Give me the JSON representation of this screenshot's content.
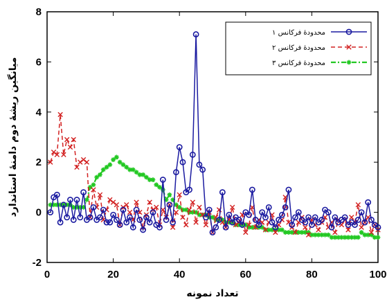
{
  "chart_data": {
    "type": "line",
    "title": "",
    "xlabel": "تعداد نمونه",
    "ylabel": "میانگین ریشهٔ دوم دامنهٔ استاندارد",
    "xlim": [
      0,
      100
    ],
    "ylim": [
      -2,
      8
    ],
    "xticks": [
      0,
      20,
      40,
      60,
      80,
      100
    ],
    "yticks": [
      -2,
      0,
      2,
      4,
      6,
      8
    ],
    "grid": false,
    "legend_position": "top-right",
    "series": [
      {
        "name": "محدودهٔ فرکانس ۱",
        "color": "#1a1aa0",
        "style": "solid",
        "marker": "circle",
        "x": [
          1,
          2,
          3,
          4,
          5,
          6,
          7,
          8,
          9,
          10,
          11,
          12,
          13,
          14,
          15,
          16,
          17,
          18,
          19,
          20,
          21,
          22,
          23,
          24,
          25,
          26,
          27,
          28,
          29,
          30,
          31,
          32,
          33,
          34,
          35,
          36,
          37,
          38,
          39,
          40,
          41,
          42,
          43,
          44,
          45,
          46,
          47,
          48,
          49,
          50,
          51,
          52,
          53,
          54,
          55,
          56,
          57,
          58,
          59,
          60,
          61,
          62,
          63,
          64,
          65,
          66,
          67,
          68,
          69,
          70,
          71,
          72,
          73,
          74,
          75,
          76,
          77,
          78,
          79,
          80,
          81,
          82,
          83,
          84,
          85,
          86,
          87,
          88,
          89,
          90,
          91,
          92,
          93,
          94,
          95,
          96,
          97,
          98,
          99,
          100
        ],
        "values": [
          0.0,
          0.6,
          0.7,
          -0.4,
          0.3,
          -0.2,
          0.5,
          -0.3,
          0.5,
          -0.2,
          0.8,
          -0.3,
          -0.2,
          0.2,
          -0.3,
          -0.2,
          0.1,
          -0.4,
          -0.4,
          -0.1,
          -0.3,
          -0.5,
          0.1,
          -0.4,
          -0.2,
          -0.6,
          0.1,
          -0.3,
          -0.7,
          -0.2,
          -0.4,
          0.0,
          -0.5,
          -0.6,
          1.3,
          -0.3,
          0.3,
          -0.4,
          1.6,
          2.6,
          2.0,
          0.8,
          0.9,
          2.3,
          7.1,
          1.9,
          1.7,
          -0.2,
          0.1,
          -0.8,
          -0.6,
          -0.3,
          0.8,
          -0.6,
          -0.1,
          -0.4,
          -0.2,
          -0.3,
          -0.5,
          0.0,
          -0.1,
          0.9,
          -0.3,
          -0.5,
          0.0,
          -0.2,
          0.2,
          -0.4,
          -0.6,
          -0.3,
          -0.1,
          0.2,
          0.9,
          -0.5,
          -0.2,
          0.0,
          -0.3,
          -0.4,
          -0.2,
          -0.5,
          -0.2,
          -0.4,
          -0.3,
          0.1,
          0.0,
          -0.6,
          -0.2,
          -0.4,
          -0.3,
          -0.2,
          -0.5,
          -0.4,
          -0.5,
          -0.3,
          0.0,
          -0.4,
          0.4,
          -0.3,
          -0.5,
          -0.6
        ]
      },
      {
        "name": "محدودهٔ فرکانس ۲",
        "color": "#d22020",
        "style": "dashed",
        "marker": "x",
        "x": [
          1,
          2,
          3,
          4,
          5,
          6,
          7,
          8,
          9,
          10,
          11,
          12,
          13,
          14,
          15,
          16,
          17,
          18,
          19,
          20,
          21,
          22,
          23,
          24,
          25,
          26,
          27,
          28,
          29,
          30,
          31,
          32,
          33,
          34,
          35,
          36,
          37,
          38,
          39,
          40,
          41,
          42,
          43,
          44,
          45,
          46,
          47,
          48,
          49,
          50,
          51,
          52,
          53,
          54,
          55,
          56,
          57,
          58,
          59,
          60,
          61,
          62,
          63,
          64,
          65,
          66,
          67,
          68,
          69,
          70,
          71,
          72,
          73,
          74,
          75,
          76,
          77,
          78,
          79,
          80,
          81,
          82,
          83,
          84,
          85,
          86,
          87,
          88,
          89,
          90,
          91,
          92,
          93,
          94,
          95,
          96,
          97,
          98,
          99,
          100
        ],
        "values": [
          2.0,
          2.4,
          2.3,
          3.9,
          2.3,
          2.9,
          2.6,
          2.9,
          1.8,
          2.0,
          2.1,
          2.0,
          -0.2,
          0.9,
          0.2,
          0.7,
          -0.3,
          0.1,
          0.5,
          0.4,
          0.3,
          -0.5,
          0.2,
          0.3,
          0.0,
          -0.3,
          0.4,
          0.0,
          -0.6,
          -0.1,
          0.4,
          0.1,
          0.2,
          -0.5,
          0.1,
          -0.2,
          0.3,
          -0.6,
          0.0,
          0.7,
          -0.2,
          -0.5,
          0.1,
          0.4,
          -0.4,
          0.2,
          -0.1,
          -0.5,
          0.0,
          -0.8,
          -0.2,
          0.1,
          -0.4,
          -0.6,
          -0.3,
          0.2,
          -0.5,
          -0.4,
          -0.1,
          -0.8,
          -0.5,
          0.2,
          -0.6,
          -0.3,
          -0.4,
          -0.7,
          -0.4,
          -0.1,
          -0.8,
          -0.5,
          -0.3,
          0.6,
          -0.4,
          -0.6,
          -0.8,
          -0.4,
          -0.2,
          -0.6,
          -0.9,
          -0.3,
          -0.5,
          -0.7,
          -0.4,
          -0.2,
          -0.6,
          -0.4,
          -0.8,
          -0.3,
          -0.5,
          -0.3,
          -0.7,
          -0.2,
          -0.4,
          0.3,
          -0.6,
          -0.4,
          -0.2,
          -0.8,
          -0.5,
          -0.7
        ]
      },
      {
        "name": "محدودهٔ فرکانس ۳",
        "color": "#22c822",
        "style": "dash-dot",
        "marker": "star",
        "x": [
          1,
          2,
          3,
          4,
          5,
          6,
          7,
          8,
          9,
          10,
          11,
          12,
          13,
          14,
          15,
          16,
          17,
          18,
          19,
          20,
          21,
          22,
          23,
          24,
          25,
          26,
          27,
          28,
          29,
          30,
          31,
          32,
          33,
          34,
          35,
          36,
          37,
          38,
          39,
          40,
          41,
          42,
          43,
          44,
          45,
          46,
          47,
          48,
          49,
          50,
          51,
          52,
          53,
          54,
          55,
          56,
          57,
          58,
          59,
          60,
          61,
          62,
          63,
          64,
          65,
          66,
          67,
          68,
          69,
          70,
          71,
          72,
          73,
          74,
          75,
          76,
          77,
          78,
          79,
          80,
          81,
          82,
          83,
          84,
          85,
          86,
          87,
          88,
          89,
          90,
          91,
          92,
          93,
          94,
          95,
          96,
          97,
          98,
          99,
          100
        ],
        "values": [
          0.3,
          0.3,
          0.3,
          0.3,
          0.3,
          0.3,
          0.3,
          0.2,
          0.2,
          0.2,
          0.2,
          0.5,
          1.0,
          1.1,
          1.4,
          1.5,
          1.7,
          1.8,
          1.9,
          2.1,
          2.2,
          2.0,
          1.9,
          1.8,
          1.7,
          1.7,
          1.6,
          1.5,
          1.5,
          1.4,
          1.3,
          1.3,
          1.1,
          1.0,
          0.9,
          0.5,
          0.7,
          0.5,
          0.3,
          0.2,
          0.1,
          0.1,
          0.0,
          0.0,
          0.0,
          -0.1,
          -0.1,
          -0.1,
          -0.2,
          -0.2,
          -0.3,
          -0.3,
          -0.3,
          -0.4,
          -0.4,
          -0.4,
          -0.5,
          -0.5,
          -0.5,
          -0.5,
          -0.6,
          -0.6,
          -0.6,
          -0.6,
          -0.6,
          -0.7,
          -0.7,
          -0.7,
          -0.7,
          -0.7,
          -0.7,
          -0.8,
          -0.8,
          -0.8,
          -0.8,
          -0.8,
          -0.8,
          -0.8,
          -0.8,
          -0.9,
          -0.9,
          -0.9,
          -0.9,
          -0.9,
          -0.9,
          -1.0,
          -1.0,
          -1.0,
          -1.0,
          -1.0,
          -1.0,
          -1.0,
          -1.0,
          -1.0,
          -0.8,
          -0.9,
          -0.9,
          -0.9,
          -1.0,
          -1.0
        ]
      }
    ]
  }
}
